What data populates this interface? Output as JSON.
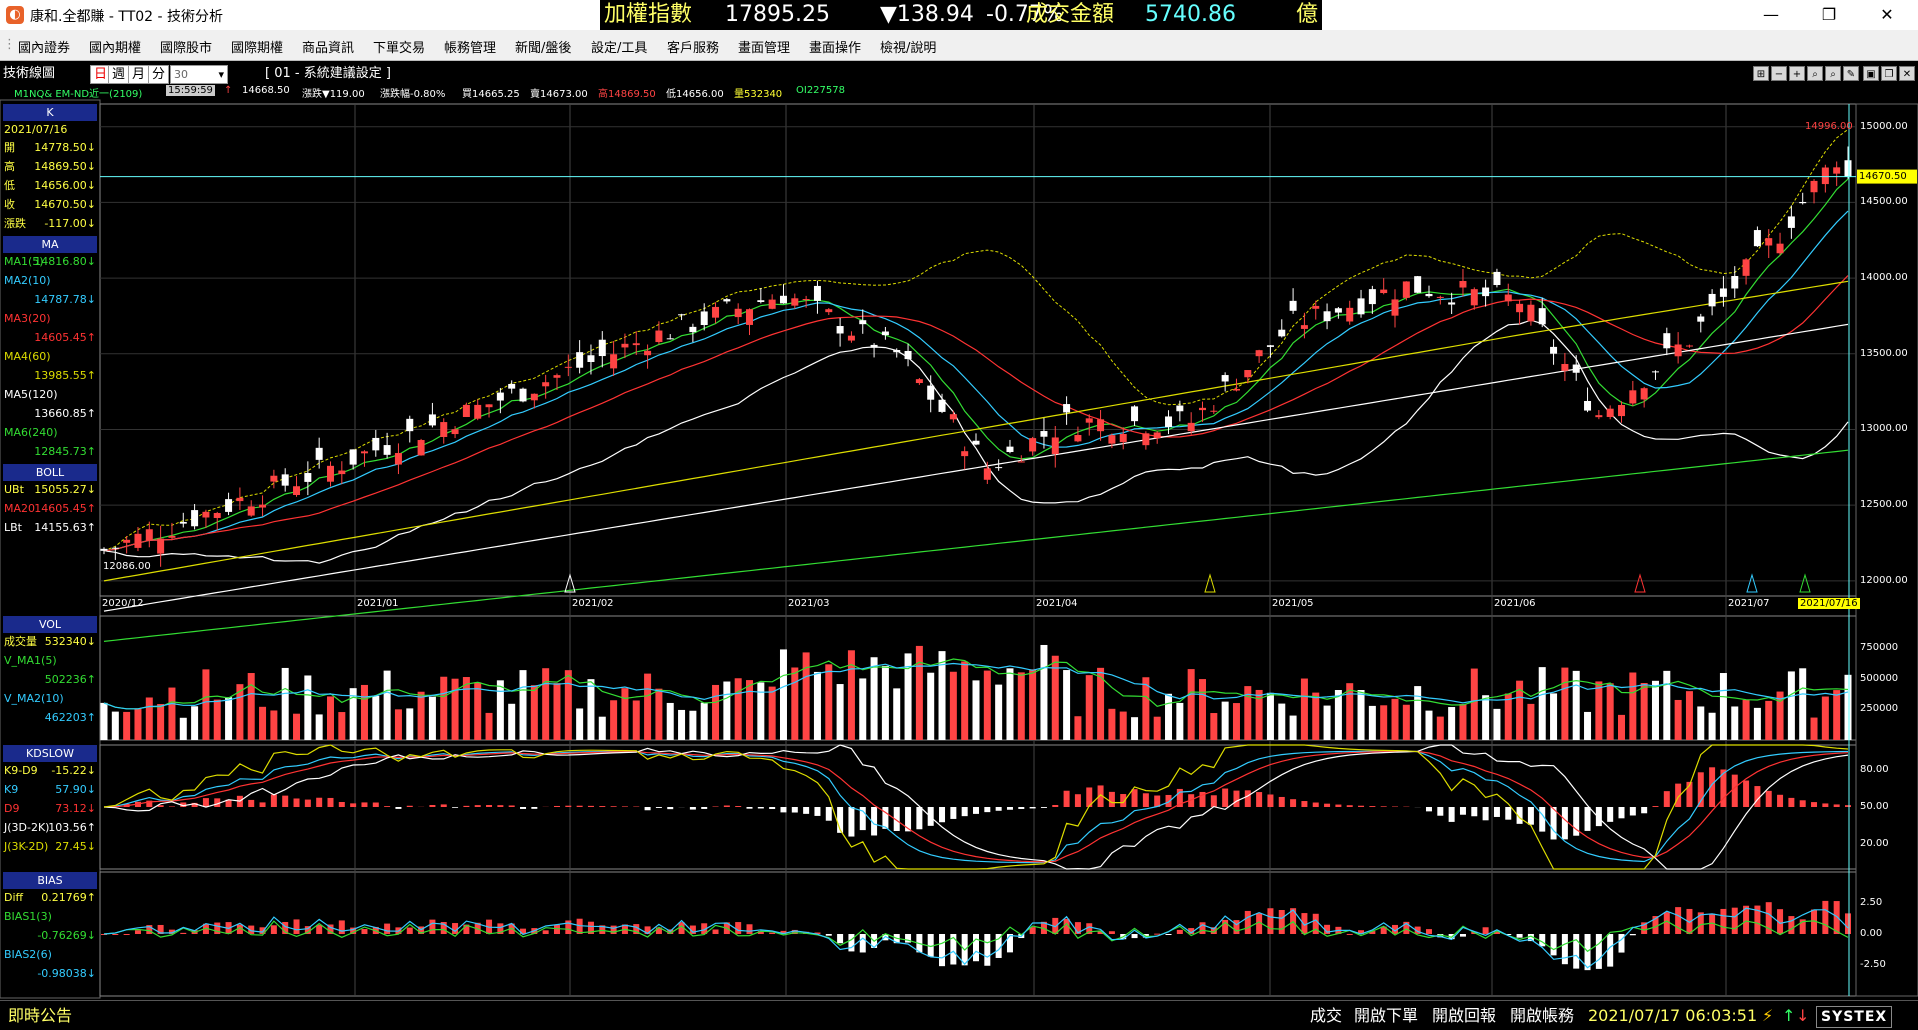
{
  "app": {
    "title": "康和.全都賺 - TT02 - 技術分析"
  },
  "ticker": {
    "name": "加權指數",
    "value": "17895.25",
    "change": "▼138.94",
    "pct": "-0.77%",
    "turnover_label": "成交金額",
    "turnover": "5740.86",
    "unit": "億"
  },
  "window_controls": [
    "—",
    "❐",
    "✕"
  ],
  "menu": [
    "國內證券",
    "國內期權",
    "國際股市",
    "國際期權",
    "商品資訊",
    "下單交易",
    "帳務管理",
    "新聞/盤後",
    "設定/工具",
    "客戶服務",
    "畫面管理",
    "畫面操作",
    "檢視/說明"
  ],
  "toolbar": {
    "section": "技術線圖",
    "periods": [
      "日",
      "週",
      "月",
      "分"
    ],
    "active_period": "日",
    "minutes": "30",
    "setting": "[ 01 - 系統建議設定 ]",
    "symbol": "M1NQ&  EM-ND近一(2109)",
    "time": "15:59:59",
    "arrow": "↑",
    "price": "14668.50",
    "change": "漲跌▼119.00",
    "pct": "漲跌幅-0.80%",
    "buy": "買14665.25",
    "sell": "賣14673.00",
    "high": "高14869.50",
    "low": "低14656.00",
    "volume": "量532340",
    "oi": "OI227578"
  },
  "colors": {
    "up": "#ff4444",
    "down": "#ffffff",
    "ma5": "#33dd33",
    "ma10": "#33ccff",
    "ma20": "#ff3333",
    "ma60": "#dddd00",
    "ma120": "#ffffff",
    "ma240": "#33dd33",
    "panel_head": "#1a2a8c"
  },
  "left_panel": {
    "k": {
      "title": "K",
      "date": "2021/07/16",
      "rows": [
        {
          "label": "開",
          "value": "14778.50↓"
        },
        {
          "label": "高",
          "value": "14869.50↓"
        },
        {
          "label": "低",
          "value": "14656.00↓"
        },
        {
          "label": "收",
          "value": "14670.50↓"
        },
        {
          "label": "漲跌",
          "value": "-117.00↓"
        }
      ]
    },
    "ma": {
      "title": "MA",
      "rows": [
        {
          "label": "MA1(5)",
          "value": "14816.80↓"
        },
        {
          "label": "MA2(10)",
          "value": ""
        },
        {
          "label": "",
          "value": "14787.78↓"
        },
        {
          "label": "MA3(20)",
          "value": ""
        },
        {
          "label": "",
          "value": "14605.45↑"
        },
        {
          "label": "MA4(60)",
          "value": ""
        },
        {
          "label": "",
          "value": "13985.55↑"
        },
        {
          "label": "MA5(120)",
          "value": ""
        },
        {
          "label": "",
          "value": "13660.85↑"
        },
        {
          "label": "MA6(240)",
          "value": ""
        },
        {
          "label": "",
          "value": "12845.73↑"
        }
      ]
    },
    "boll": {
      "title": "BOLL",
      "rows": [
        {
          "label": "UBt",
          "value": "15055.27↓"
        },
        {
          "label": "MA20",
          "value": "14605.45↑"
        },
        {
          "label": "LBt",
          "value": "14155.63↑"
        }
      ]
    },
    "vol": {
      "title": "VOL",
      "rows": [
        {
          "label": "成交量",
          "value": "532340↓"
        },
        {
          "label": "V_MA1(5)",
          "value": ""
        },
        {
          "label": "",
          "value": "502236↑"
        },
        {
          "label": "V_MA2(10)",
          "value": ""
        },
        {
          "label": "",
          "value": "462203↑"
        }
      ]
    },
    "kd": {
      "title": "KDSLOW",
      "rows": [
        {
          "label": "K9-D9",
          "value": "-15.22↓"
        },
        {
          "label": "K9",
          "value": "57.90↓"
        },
        {
          "label": "D9",
          "value": "73.12↓"
        },
        {
          "label": "J(3D-2K)",
          "value": "103.56↑"
        },
        {
          "label": "J(3K-2D)",
          "value": "27.45↓"
        }
      ]
    },
    "bias": {
      "title": "BIAS",
      "rows": [
        {
          "label": "Diff",
          "value": "0.21769↑"
        },
        {
          "label": "BIAS1(3)",
          "value": ""
        },
        {
          "label": "",
          "value": "-0.76269↓"
        },
        {
          "label": "BIAS2(6)",
          "value": ""
        },
        {
          "label": "",
          "value": "-0.98038↓"
        }
      ]
    }
  },
  "main_chart": {
    "y_ticks": [
      "15000.00",
      "14500.00",
      "14000.00",
      "13500.00",
      "13000.00",
      "12500.00",
      "12000.00"
    ],
    "x_ticks": [
      "2020/12",
      "2021/01",
      "2021/02",
      "2021/03",
      "2021/04",
      "2021/05",
      "2021/06",
      "2021/07"
    ],
    "current_price": "14670.50",
    "high_label": "14996.00",
    "low_label": "12086.00",
    "date_label": "2021/07/16"
  },
  "vol_chart": {
    "y_ticks": [
      "750000",
      "500000",
      "250000"
    ]
  },
  "kd_chart": {
    "y_ticks": [
      "80.00",
      "50.00",
      "20.00"
    ]
  },
  "bias_chart": {
    "y_ticks": [
      "2.50",
      "0.00",
      "-2.50"
    ]
  },
  "chart_data": {
    "type": "candlestick",
    "symbol": "EM-ND近一(2109)",
    "ylim": [
      11900,
      15150
    ],
    "last": {
      "date": "2021/07/16",
      "open": 14778.5,
      "high": 14869.5,
      "low": 14656.0,
      "close": 14670.5
    },
    "period_high": 14996.0,
    "period_low": 12086.0,
    "volume_last": 532340,
    "kd": {
      "k9": 57.9,
      "d9": 73.12
    },
    "bias": {
      "bias1_3": -0.76269,
      "bias2_6": -0.98038,
      "diff": 0.21769
    }
  },
  "status": {
    "notice": "即時公告",
    "items": [
      "成交",
      "開啟下單",
      "開啟回報",
      "開啟帳務"
    ],
    "datetime": "2021/07/17 06:03:51",
    "brand": "SYSTEX"
  }
}
